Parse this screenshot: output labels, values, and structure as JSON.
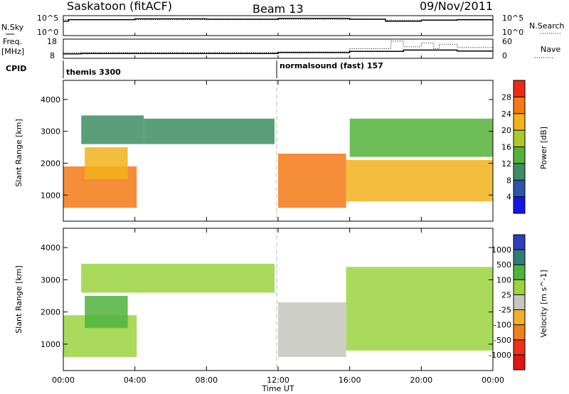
{
  "header": {
    "station": "Saskatoon (fitACF)",
    "beam": "Beam 13",
    "date": "09/Nov/2011"
  },
  "strip_labels": {
    "nsky_label": "N.Sky",
    "nsky_top": "10^5",
    "nsky_bottom": "10^0",
    "nsearch_label": "N.Search",
    "nsearch_top": "10^5",
    "nsearch_bottom": "10^0",
    "freq_label_1": "Freq.",
    "freq_label_2": "[MHz]",
    "freq_top": "18",
    "freq_bottom": "8",
    "nave_label": "Nave",
    "nave_top": "60",
    "nave_bottom": "0",
    "cpid_label": "CPID",
    "cpid_1": "themis 3300",
    "cpid_2": "normalsound (fast) 157"
  },
  "axes": {
    "ylabel": "Slant Range [km]",
    "yticks": [
      "1000",
      "2000",
      "3000",
      "4000"
    ],
    "xticks": [
      "00:00",
      "04:00",
      "08:00",
      "12:00",
      "16:00",
      "20:00",
      "00:00"
    ],
    "xlabel": "Time UT"
  },
  "colorbars": {
    "power": {
      "label": "Power [dB]",
      "ticks": [
        "4",
        "8",
        "12",
        "16",
        "20",
        "24",
        "28"
      ],
      "colors": [
        "#1515e8",
        "#2c55a8",
        "#3d8e62",
        "#55b23a",
        "#a9c92c",
        "#f3b21b",
        "#f57915",
        "#ee2a17"
      ]
    },
    "velocity": {
      "label": "Velocity [m s^-1]",
      "ticks": [
        "1000",
        "500",
        "100",
        "25",
        "-25",
        "-100",
        "-500",
        "-1000"
      ],
      "colors": [
        "#2d3fbd",
        "#2f7f76",
        "#4fb33d",
        "#9bd33f",
        "#c6c6c0",
        "#f1b12a",
        "#f0801d",
        "#ea3318",
        "#e11414"
      ]
    }
  },
  "chart_data": [
    {
      "type": "heatmap",
      "title": "Power",
      "xlabel": "Time UT",
      "ylabel": "Slant Range [km]",
      "xlim": [
        "00:00",
        "24:00"
      ],
      "ylim": [
        180,
        4600
      ],
      "colorbar_label": "Power [dB]",
      "colorbar_range": [
        0,
        32
      ],
      "regions": [
        {
          "t": [
            0.0,
            4.1
          ],
          "r": [
            600,
            1900
          ],
          "value_db": 26
        },
        {
          "t": [
            1.2,
            3.6
          ],
          "r": [
            1500,
            2500
          ],
          "value_db": 22
        },
        {
          "t": [
            1.0,
            4.5
          ],
          "r": [
            2600,
            3500
          ],
          "value_db": 10
        },
        {
          "t": [
            4.5,
            11.8
          ],
          "r": [
            2600,
            3400
          ],
          "value_db": 8
        },
        {
          "t": [
            12.0,
            15.8
          ],
          "r": [
            600,
            2300
          ],
          "value_db": 24
        },
        {
          "t": [
            15.8,
            24.0
          ],
          "r": [
            800,
            2100
          ],
          "value_db": 22
        },
        {
          "t": [
            16.0,
            24.0
          ],
          "r": [
            2200,
            3400
          ],
          "value_db": 14
        }
      ]
    },
    {
      "type": "heatmap",
      "title": "Velocity",
      "xlabel": "Time UT",
      "ylabel": "Slant Range [km]",
      "xlim": [
        "00:00",
        "24:00"
      ],
      "ylim": [
        180,
        4600
      ],
      "colorbar_label": "Velocity [m s^-1]",
      "colorbar_range": [
        -1000,
        1000
      ],
      "regions": [
        {
          "t": [
            0.0,
            4.1
          ],
          "r": [
            600,
            1900
          ],
          "value_ms": 0
        },
        {
          "t": [
            1.2,
            3.6
          ],
          "r": [
            1500,
            2500
          ],
          "value_ms": 60
        },
        {
          "t": [
            1.0,
            11.8
          ],
          "r": [
            2600,
            3500
          ],
          "value_ms": 0
        },
        {
          "t": [
            12.0,
            15.8
          ],
          "r": [
            600,
            2300
          ],
          "value_ms": -60
        },
        {
          "t": [
            15.8,
            24.0
          ],
          "r": [
            800,
            3400
          ],
          "value_ms": 0
        }
      ]
    }
  ]
}
